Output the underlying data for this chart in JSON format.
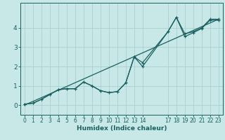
{
  "xlabel": "Humidex (Indice chaleur)",
  "bg_color": "#c8e8e8",
  "grid_color": "#a8d0d0",
  "line_color": "#1a6060",
  "xlim": [
    -0.5,
    23.5
  ],
  "ylim": [
    -0.5,
    5.3
  ],
  "xticks": [
    0,
    1,
    2,
    3,
    4,
    5,
    6,
    7,
    8,
    9,
    10,
    11,
    12,
    13,
    14,
    17,
    18,
    19,
    20,
    21,
    22,
    23
  ],
  "yticks": [
    0,
    1,
    2,
    3,
    4
  ],
  "line1_x": [
    0,
    1,
    2,
    3,
    4,
    5,
    6,
    7,
    8,
    9,
    10,
    11,
    12,
    13,
    14,
    17,
    18,
    19,
    20,
    21,
    22,
    23
  ],
  "line1_y": [
    0.05,
    0.1,
    0.3,
    0.55,
    0.8,
    0.85,
    0.85,
    1.2,
    1.0,
    0.75,
    0.65,
    0.7,
    1.15,
    2.5,
    2.0,
    3.8,
    4.55,
    3.7,
    3.8,
    4.0,
    4.45,
    4.45
  ],
  "line2_x": [
    0,
    1,
    2,
    3,
    4,
    5,
    6,
    7,
    8,
    9,
    10,
    11,
    12,
    13,
    14,
    17,
    18,
    19,
    20,
    21,
    22,
    23
  ],
  "line2_y": [
    0.05,
    0.1,
    0.3,
    0.55,
    0.8,
    0.85,
    0.85,
    1.2,
    1.0,
    0.75,
    0.65,
    0.7,
    1.15,
    2.5,
    2.2,
    3.8,
    4.55,
    3.55,
    3.75,
    3.97,
    4.4,
    4.4
  ],
  "line3_x": [
    0,
    23
  ],
  "line3_y": [
    0.0,
    4.45
  ],
  "tick_fontsize": 5.5,
  "xlabel_fontsize": 6.5
}
